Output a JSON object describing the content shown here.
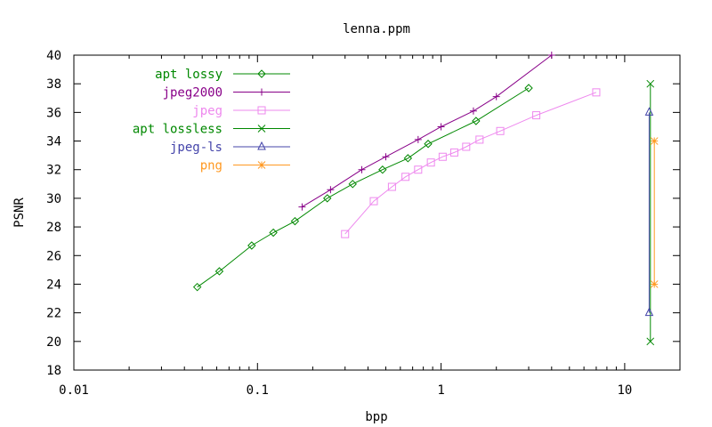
{
  "chart_data": {
    "type": "line",
    "title": "lenna.ppm",
    "xlabel": "bpp",
    "ylabel": "PSNR",
    "xscale": "log",
    "xlim": [
      0.01,
      20
    ],
    "ylim": [
      18,
      40
    ],
    "x_ticks": [
      {
        "value": 0.01,
        "label": "0.01"
      },
      {
        "value": 0.1,
        "label": "0.1"
      },
      {
        "value": 1,
        "label": "1"
      },
      {
        "value": 10,
        "label": "10"
      }
    ],
    "y_ticks": [
      {
        "value": 18,
        "label": "18"
      },
      {
        "value": 20,
        "label": "20"
      },
      {
        "value": 22,
        "label": "22"
      },
      {
        "value": 24,
        "label": "24"
      },
      {
        "value": 26,
        "label": "26"
      },
      {
        "value": 28,
        "label": "28"
      },
      {
        "value": 30,
        "label": "30"
      },
      {
        "value": 32,
        "label": "32"
      },
      {
        "value": 34,
        "label": "34"
      },
      {
        "value": 36,
        "label": "36"
      },
      {
        "value": 38,
        "label": "38"
      },
      {
        "value": 40,
        "label": "40"
      }
    ],
    "grid": false,
    "legend_position": "top-left",
    "series": [
      {
        "name": "apt lossy",
        "color": "#008800",
        "marker": "diamond",
        "x": [
          0.047,
          0.062,
          0.093,
          0.122,
          0.16,
          0.24,
          0.33,
          0.48,
          0.66,
          0.85,
          1.55,
          3.0
        ],
        "y": [
          23.8,
          24.9,
          26.7,
          27.6,
          28.4,
          30.0,
          31.0,
          32.0,
          32.8,
          33.8,
          35.4,
          37.7
        ]
      },
      {
        "name": "jpeg2000",
        "color": "#880088",
        "marker": "plus",
        "x": [
          0.175,
          0.25,
          0.37,
          0.5,
          0.75,
          1.0,
          1.5,
          2.0,
          4.0
        ],
        "y": [
          29.4,
          30.6,
          32.0,
          32.9,
          34.1,
          35.0,
          36.1,
          37.1,
          40.0
        ]
      },
      {
        "name": "jpeg",
        "color": "#ee88ee",
        "marker": "square",
        "x": [
          0.3,
          0.43,
          0.54,
          0.64,
          0.75,
          0.88,
          1.02,
          1.18,
          1.37,
          1.62,
          2.1,
          3.3,
          7.0
        ],
        "y": [
          27.5,
          29.8,
          30.8,
          31.5,
          32.0,
          32.5,
          32.9,
          33.2,
          33.6,
          34.1,
          34.7,
          35.8,
          37.4
        ]
      },
      {
        "name": "apt lossless",
        "color": "#008800",
        "marker": "x",
        "x": [
          13.8,
          13.8
        ],
        "y": [
          20.0,
          38.0
        ]
      },
      {
        "name": "jpeg-ls",
        "color": "#4444aa",
        "marker": "triangle",
        "x": [
          13.6,
          13.6
        ],
        "y": [
          22.0,
          36.0
        ]
      },
      {
        "name": "png",
        "color": "#ff9922",
        "marker": "star",
        "x": [
          14.5,
          14.5
        ],
        "y": [
          24.0,
          34.0
        ]
      }
    ]
  }
}
